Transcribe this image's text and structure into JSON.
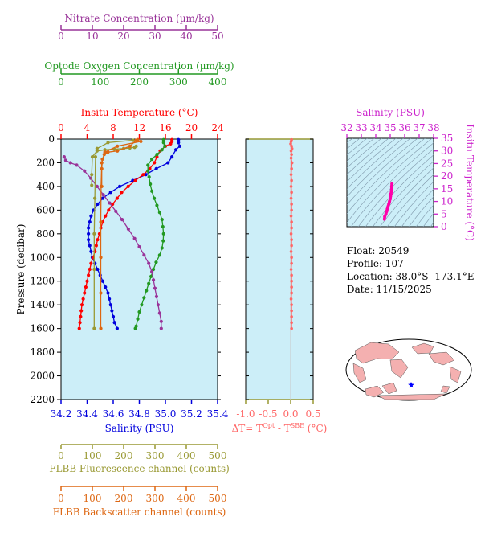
{
  "chart_data": [
    {
      "type": "line",
      "title": "",
      "ylabel": "Pressure (decibar)",
      "ylim": [
        2200,
        0
      ],
      "yticks": [
        0,
        200,
        400,
        600,
        800,
        1000,
        1200,
        1400,
        1600,
        1800,
        2000,
        2200
      ],
      "axes": {
        "nitrate": {
          "label": "Nitrate Concentration (µm/kg)",
          "range": [
            0,
            50
          ],
          "ticks": [
            0,
            10,
            20,
            30,
            40,
            50
          ],
          "color": "#993399"
        },
        "oxygen": {
          "label": "Optode Oxygen Concentration (µm/kg)",
          "range": [
            0,
            400
          ],
          "ticks": [
            0,
            100,
            200,
            300,
            400
          ],
          "color": "#229922"
        },
        "temperature": {
          "label": "Insitu Temperature (°C)",
          "range": [
            0,
            24
          ],
          "ticks": [
            0,
            4,
            8,
            12,
            16,
            20,
            24
          ],
          "color": "#ff0000"
        },
        "salinity": {
          "label": "Salinity (PSU)",
          "range": [
            34.2,
            35.4
          ],
          "ticks": [
            "34.2",
            "34.4",
            "34.6",
            "34.8",
            "35.0",
            "35.2",
            "35.4"
          ],
          "color": "#0000dd"
        },
        "fluorescence": {
          "label": "FLBB Fluorescence channel (counts)",
          "range": [
            0,
            500
          ],
          "ticks": [
            0,
            100,
            200,
            300,
            400,
            500
          ],
          "color": "#999933"
        },
        "backscatter": {
          "label": "FLBB Backscatter channel (counts)",
          "range": [
            0,
            500
          ],
          "ticks": [
            0,
            100,
            200,
            300,
            400,
            500
          ],
          "color": "#dd6611"
        }
      },
      "series": [
        {
          "axis": "salinity",
          "color": "#0000dd",
          "points": [
            [
              35.1,
              5
            ],
            [
              35.1,
              30
            ],
            [
              35.11,
              60
            ],
            [
              35.08,
              90
            ],
            [
              35.05,
              150
            ],
            [
              35.02,
              200
            ],
            [
              34.93,
              250
            ],
            [
              34.85,
              300
            ],
            [
              34.75,
              350
            ],
            [
              34.65,
              400
            ],
            [
              34.58,
              450
            ],
            [
              34.52,
              500
            ],
            [
              34.48,
              550
            ],
            [
              34.45,
              600
            ],
            [
              34.43,
              650
            ],
            [
              34.42,
              700
            ],
            [
              34.41,
              750
            ],
            [
              34.41,
              800
            ],
            [
              34.41,
              850
            ],
            [
              34.42,
              900
            ],
            [
              34.43,
              950
            ],
            [
              34.44,
              1000
            ],
            [
              34.46,
              1050
            ],
            [
              34.48,
              1100
            ],
            [
              34.5,
              1150
            ],
            [
              34.52,
              1200
            ],
            [
              34.54,
              1250
            ],
            [
              34.56,
              1300
            ],
            [
              34.57,
              1350
            ],
            [
              34.58,
              1400
            ],
            [
              34.59,
              1450
            ],
            [
              34.6,
              1500
            ],
            [
              34.61,
              1550
            ],
            [
              34.63,
              1600
            ]
          ]
        },
        {
          "axis": "temperature",
          "color": "#ff0000",
          "points": [
            [
              17,
              5
            ],
            [
              17,
              20
            ],
            [
              16.8,
              40
            ],
            [
              16,
              60
            ],
            [
              15.2,
              100
            ],
            [
              14.7,
              150
            ],
            [
              14.3,
              200
            ],
            [
              13.6,
              250
            ],
            [
              12.6,
              300
            ],
            [
              11.4,
              350
            ],
            [
              10.3,
              400
            ],
            [
              9.3,
              450
            ],
            [
              8.6,
              500
            ],
            [
              7.9,
              550
            ],
            [
              7.3,
              600
            ],
            [
              6.8,
              650
            ],
            [
              6.4,
              700
            ],
            [
              6.1,
              750
            ],
            [
              5.9,
              800
            ],
            [
              5.6,
              850
            ],
            [
              5.4,
              900
            ],
            [
              5.2,
              950
            ],
            [
              4.9,
              1000
            ],
            [
              4.6,
              1050
            ],
            [
              4.4,
              1100
            ],
            [
              4.2,
              1150
            ],
            [
              4,
              1200
            ],
            [
              3.8,
              1250
            ],
            [
              3.6,
              1300
            ],
            [
              3.4,
              1350
            ],
            [
              3.2,
              1400
            ],
            [
              3.1,
              1450
            ],
            [
              3,
              1500
            ],
            [
              2.9,
              1550
            ],
            [
              2.8,
              1600
            ]
          ]
        },
        {
          "axis": "oxygen",
          "color": "#229922",
          "points": [
            [
              262,
              5
            ],
            [
              262,
              30
            ],
            [
              265,
              60
            ],
            [
              258,
              90
            ],
            [
              245,
              130
            ],
            [
              232,
              170
            ],
            [
              222,
              220
            ],
            [
              222,
              270
            ],
            [
              225,
              320
            ],
            [
              228,
              380
            ],
            [
              232,
              440
            ],
            [
              238,
              500
            ],
            [
              245,
              560
            ],
            [
              252,
              620
            ],
            [
              258,
              680
            ],
            [
              260,
              740
            ],
            [
              262,
              800
            ],
            [
              261,
              860
            ],
            [
              258,
              920
            ],
            [
              252,
              980
            ],
            [
              243,
              1040
            ],
            [
              236,
              1100
            ],
            [
              230,
              1160
            ],
            [
              224,
              1220
            ],
            [
              218,
              1280
            ],
            [
              212,
              1340
            ],
            [
              206,
              1400
            ],
            [
              200,
              1460
            ],
            [
              196,
              1520
            ],
            [
              192,
              1580
            ],
            [
              190,
              1600
            ]
          ]
        },
        {
          "axis": "nitrate",
          "color": "#993399",
          "points": [
            [
              1,
              150
            ],
            [
              1.5,
              180
            ],
            [
              3,
              200
            ],
            [
              5,
              220
            ],
            [
              7.5,
              270
            ],
            [
              9.5,
              330
            ],
            [
              11.5,
              400
            ],
            [
              13.5,
              470
            ],
            [
              15.5,
              540
            ],
            [
              17.5,
              610
            ],
            [
              19.5,
              680
            ],
            [
              21.5,
              760
            ],
            [
              23.5,
              840
            ],
            [
              25,
              910
            ],
            [
              26.5,
              980
            ],
            [
              28,
              1050
            ],
            [
              29,
              1120
            ],
            [
              29.5,
              1190
            ],
            [
              30,
              1260
            ],
            [
              30.5,
              1330
            ],
            [
              31,
              1400
            ],
            [
              31.5,
              1470
            ],
            [
              32,
              1540
            ],
            [
              32,
              1600
            ]
          ]
        },
        {
          "axis": "fluorescence",
          "color": "#999933",
          "points": [
            [
              240,
              60
            ],
            [
              235,
              70
            ],
            [
              220,
              75
            ],
            [
              200,
              80
            ],
            [
              170,
              85
            ],
            [
              140,
              90
            ],
            [
              115,
              100
            ],
            [
              100,
              150
            ],
            [
              98,
              300
            ],
            [
              98,
              390
            ]
          ]
        },
        {
          "axis": "backscatter",
          "color": "#999933",
          "points": [
            [
              230,
              10
            ],
            [
              150,
              30
            ],
            [
              115,
              80
            ],
            [
              110,
              150
            ],
            [
              108,
              500
            ],
            [
              106,
              800
            ],
            [
              106,
              1100
            ],
            [
              106,
              1600
            ]
          ]
        },
        {
          "axis": "fluorescence",
          "color": "#dd6611",
          "points": [
            [
              245,
              5
            ],
            [
              240,
              10
            ],
            [
              220,
              60
            ],
            [
              180,
              100
            ],
            [
              150,
              110
            ],
            [
              138,
              130
            ],
            [
              132,
              170
            ],
            [
              130,
              250
            ],
            [
              130,
              400
            ]
          ]
        },
        {
          "axis": "backscatter",
          "color": "#dd6611",
          "points": [
            [
              255,
              20
            ],
            [
              180,
              60
            ],
            [
              140,
              110
            ],
            [
              130,
              200
            ],
            [
              128,
              400
            ],
            [
              127,
              700
            ],
            [
              127,
              1000
            ],
            [
              127,
              1300
            ],
            [
              127,
              1600
            ]
          ]
        }
      ]
    },
    {
      "type": "line",
      "xlabel": "ΔT= T^Opt - T^SBE (°C)",
      "xlim": [
        -1.0,
        0.5
      ],
      "xticks": [
        "-1.0",
        "-0.5",
        "0.0",
        "0.5"
      ],
      "ylim": [
        2200,
        0
      ],
      "series": [
        {
          "color": "#ff6666",
          "points": [
            [
              0.02,
              5
            ],
            [
              0.01,
              20
            ],
            [
              0,
              40
            ],
            [
              0.02,
              60
            ],
            [
              0.03,
              80
            ],
            [
              0.01,
              100
            ],
            [
              0.02,
              130
            ],
            [
              0.01,
              160
            ],
            [
              0.03,
              200
            ],
            [
              0.02,
              250
            ],
            [
              0.01,
              300
            ],
            [
              0.02,
              350
            ],
            [
              0.01,
              400
            ],
            [
              0.02,
              450
            ],
            [
              0.01,
              500
            ],
            [
              0.02,
              550
            ],
            [
              0.02,
              600
            ],
            [
              0.01,
              650
            ],
            [
              0.02,
              700
            ],
            [
              0.02,
              750
            ],
            [
              0.01,
              800
            ],
            [
              0.02,
              850
            ],
            [
              0.02,
              900
            ],
            [
              0.01,
              950
            ],
            [
              0.02,
              1000
            ],
            [
              0.02,
              1050
            ],
            [
              0.01,
              1100
            ],
            [
              0.02,
              1150
            ],
            [
              0.02,
              1200
            ],
            [
              0.02,
              1250
            ],
            [
              0.02,
              1300
            ],
            [
              0.01,
              1350
            ],
            [
              0.02,
              1400
            ],
            [
              0.02,
              1450
            ],
            [
              0.02,
              1500
            ],
            [
              0.02,
              1550
            ],
            [
              0.02,
              1600
            ]
          ]
        }
      ]
    },
    {
      "type": "scatter",
      "xlabel": "Salinity (PSU)",
      "ylabel": "Insitu Temperature (°C)",
      "xlim": [
        32,
        38
      ],
      "ylim": [
        0,
        35
      ],
      "xticks": [
        32,
        33,
        34,
        35,
        36,
        37,
        38
      ],
      "yticks": [
        0,
        5,
        10,
        15,
        20,
        25,
        30,
        35
      ],
      "series": [
        {
          "color": "#ff00aa",
          "points": [
            [
              34.6,
              3
            ],
            [
              34.62,
              4
            ],
            [
              34.7,
              5
            ],
            [
              34.75,
              6
            ],
            [
              34.8,
              7
            ],
            [
              34.85,
              8
            ],
            [
              34.9,
              9
            ],
            [
              34.95,
              10
            ],
            [
              35.0,
              11
            ],
            [
              35.02,
              12
            ],
            [
              35.05,
              13
            ],
            [
              35.08,
              14
            ],
            [
              35.1,
              15
            ],
            [
              35.1,
              16
            ],
            [
              35.12,
              17
            ]
          ]
        }
      ]
    }
  ],
  "info": {
    "float": "Float:  20549",
    "profile": "Profile:  107",
    "location": "Location:  38.0°S  -173.1°E",
    "date": "Date:  11/15/2025"
  },
  "map": {
    "marker_color": "#0000ff",
    "land_color": "#f4b0b0",
    "ocean_color": "#ffffff"
  },
  "colors": {
    "plot_bg": "#cceef8",
    "axis": "#000000"
  }
}
